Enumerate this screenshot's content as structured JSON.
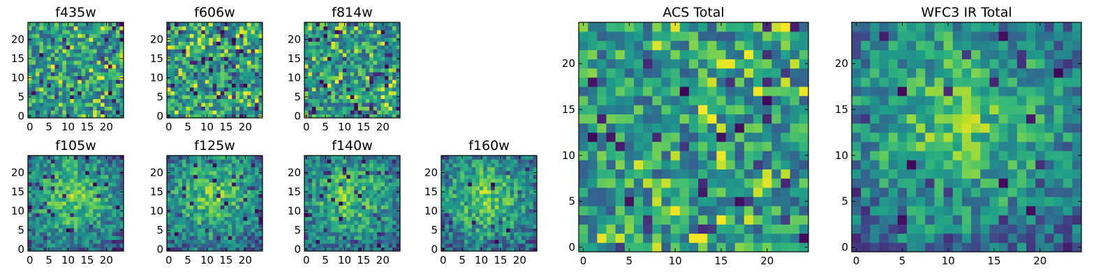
{
  "chart_data": [
    {
      "type": "heatmap",
      "title": "f435w",
      "size": 25,
      "xlim": [
        0,
        24
      ],
      "ylim": [
        0,
        24
      ],
      "xticks": [
        0,
        5,
        10,
        15,
        20
      ],
      "yticks": [
        0,
        5,
        10,
        15,
        20
      ],
      "colormap": "viridis",
      "pattern": "noise",
      "seed": 11
    },
    {
      "type": "heatmap",
      "title": "f606w",
      "size": 25,
      "xlim": [
        0,
        24
      ],
      "ylim": [
        0,
        24
      ],
      "xticks": [
        0,
        5,
        10,
        15,
        20
      ],
      "yticks": [
        0,
        5,
        10,
        15,
        20
      ],
      "colormap": "viridis",
      "pattern": "noise",
      "seed": 23
    },
    {
      "type": "heatmap",
      "title": "f814w",
      "size": 25,
      "xlim": [
        0,
        24
      ],
      "ylim": [
        0,
        24
      ],
      "xticks": [
        0,
        5,
        10,
        15,
        20
      ],
      "yticks": [
        0,
        5,
        10,
        15,
        20
      ],
      "colormap": "viridis",
      "pattern": "noise",
      "seed": 37
    },
    {
      "type": "heatmap",
      "title": "f105w",
      "size": 25,
      "xlim": [
        0,
        24
      ],
      "ylim": [
        0,
        24
      ],
      "xticks": [
        0,
        5,
        10,
        15,
        20
      ],
      "yticks": [
        0,
        5,
        10,
        15,
        20
      ],
      "colormap": "viridis",
      "pattern": "blob",
      "seed": 41
    },
    {
      "type": "heatmap",
      "title": "f125w",
      "size": 25,
      "xlim": [
        0,
        24
      ],
      "ylim": [
        0,
        24
      ],
      "xticks": [
        0,
        5,
        10,
        15,
        20
      ],
      "yticks": [
        0,
        5,
        10,
        15,
        20
      ],
      "colormap": "viridis",
      "pattern": "blob",
      "seed": 53
    },
    {
      "type": "heatmap",
      "title": "f140w",
      "size": 25,
      "xlim": [
        0,
        24
      ],
      "ylim": [
        0,
        24
      ],
      "xticks": [
        0,
        5,
        10,
        15,
        20
      ],
      "yticks": [
        0,
        5,
        10,
        15,
        20
      ],
      "colormap": "viridis",
      "pattern": "blob",
      "seed": 67
    },
    {
      "type": "heatmap",
      "title": "f160w",
      "size": 25,
      "xlim": [
        0,
        24
      ],
      "ylim": [
        0,
        24
      ],
      "xticks": [
        0,
        5,
        10,
        15,
        20
      ],
      "yticks": [
        0,
        5,
        10,
        15,
        20
      ],
      "colormap": "viridis",
      "pattern": "blob",
      "seed": 79
    },
    {
      "type": "heatmap",
      "title": "ACS Total",
      "size": 25,
      "xlim": [
        0,
        24
      ],
      "ylim": [
        0,
        24
      ],
      "xticks": [
        0,
        5,
        10,
        15,
        20
      ],
      "yticks": [
        0,
        5,
        10,
        15,
        20
      ],
      "colormap": "viridis",
      "pattern": "noise",
      "seed": 97
    },
    {
      "type": "heatmap",
      "title": "WFC3 IR Total",
      "size": 25,
      "xlim": [
        0,
        24
      ],
      "ylim": [
        0,
        24
      ],
      "xticks": [
        0,
        5,
        10,
        15,
        20
      ],
      "yticks": [
        0,
        5,
        10,
        15,
        20
      ],
      "colormap": "viridis",
      "pattern": "blob",
      "seed": 131
    }
  ]
}
